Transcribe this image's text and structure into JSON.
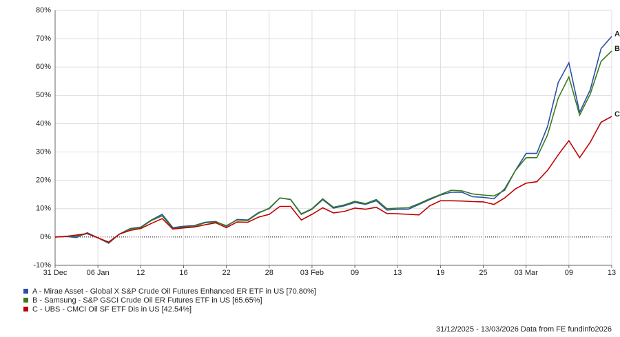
{
  "chart_data": {
    "type": "line",
    "categories": [
      "31 Dec",
      null,
      null,
      null,
      "06 Jan",
      null,
      null,
      null,
      "12",
      null,
      null,
      null,
      "16",
      null,
      null,
      null,
      "22",
      null,
      null,
      null,
      "28",
      null,
      null,
      null,
      "03 Feb",
      null,
      null,
      null,
      "09",
      null,
      null,
      null,
      "13",
      null,
      null,
      null,
      "19",
      null,
      null,
      null,
      "25",
      null,
      null,
      null,
      "03 Mar",
      null,
      null,
      null,
      "09",
      null,
      null,
      null,
      "13"
    ],
    "series": [
      {
        "name": "A - Mirae Asset - Global X S&P Crude Oil Futures Enhanced ER ETF in US [70.80%]",
        "end_label": "A",
        "color": "#2a4fa8",
        "values": [
          0,
          0.2,
          -0.2,
          1.5,
          -0.3,
          -2.2,
          1,
          3,
          3.5,
          6,
          8,
          3.3,
          3.8,
          4,
          5.2,
          5.5,
          3.8,
          6.2,
          6,
          8.6,
          10,
          13.8,
          13.2,
          8,
          9.8,
          13.2,
          10.2,
          11,
          12.2,
          11.5,
          12.8,
          9.5,
          9.8,
          9.8,
          11.5,
          13.2,
          14.8,
          15.8,
          15.8,
          14.2,
          14,
          13.5,
          17,
          23.5,
          29.5,
          29.5,
          39,
          54.5,
          61.5,
          44,
          52,
          66.5,
          70.8
        ]
      },
      {
        "name": "B - Samsung - S&P GSCI Crude Oil ER Futures ETF in US [65.65%]",
        "end_label": "B",
        "color": "#3b7a1f",
        "values": [
          0,
          0.2,
          0.3,
          1.2,
          -0.3,
          -2,
          1,
          2.8,
          3.3,
          5.8,
          7.5,
          3,
          3.5,
          3.8,
          5,
          5.3,
          4,
          6,
          5.8,
          8.4,
          10.2,
          13.8,
          13.3,
          8.2,
          10,
          13.5,
          10.5,
          11.3,
          12.6,
          11.8,
          13.2,
          10,
          10.2,
          10.3,
          11.8,
          13.5,
          15,
          16.5,
          16.3,
          15.2,
          14.8,
          14.5,
          16.5,
          23.5,
          28,
          28,
          36,
          49,
          56.5,
          43,
          50.5,
          62,
          65.65
        ]
      },
      {
        "name": "C - UBS - CMCI Oil SF ETF Dis in US [42.54%]",
        "end_label": "C",
        "color": "#c00000",
        "values": [
          0,
          0.2,
          0.7,
          1.2,
          -0.3,
          -1.8,
          1,
          2.3,
          3,
          4.8,
          6.5,
          2.8,
          3.2,
          3.5,
          4.3,
          5,
          3.3,
          5.3,
          5.2,
          7,
          8,
          10.8,
          10.8,
          6,
          8,
          10.3,
          8.5,
          9,
          10.2,
          9.8,
          10.5,
          8.3,
          8.2,
          8,
          7.8,
          11,
          12.8,
          12.8,
          12.7,
          12.5,
          12.4,
          11.5,
          13.8,
          17,
          19,
          19.5,
          23.5,
          29,
          34,
          28,
          33.5,
          40.5,
          42.54
        ]
      }
    ],
    "ylim": [
      -10,
      80
    ],
    "yticks": [
      {
        "value": -10,
        "label": "-10%"
      },
      {
        "value": 0,
        "label": "0%"
      },
      {
        "value": 10,
        "label": "10%"
      },
      {
        "value": 20,
        "label": "20%"
      },
      {
        "value": 30,
        "label": "30%"
      },
      {
        "value": 40,
        "label": "40%"
      },
      {
        "value": 50,
        "label": "50%"
      },
      {
        "value": 60,
        "label": "60%"
      },
      {
        "value": 70,
        "label": "70%"
      },
      {
        "value": 80,
        "label": "80%"
      }
    ],
    "grid": true,
    "footer": "31/12/2025 - 13/03/2026 Data from FE fundinfo2026"
  }
}
